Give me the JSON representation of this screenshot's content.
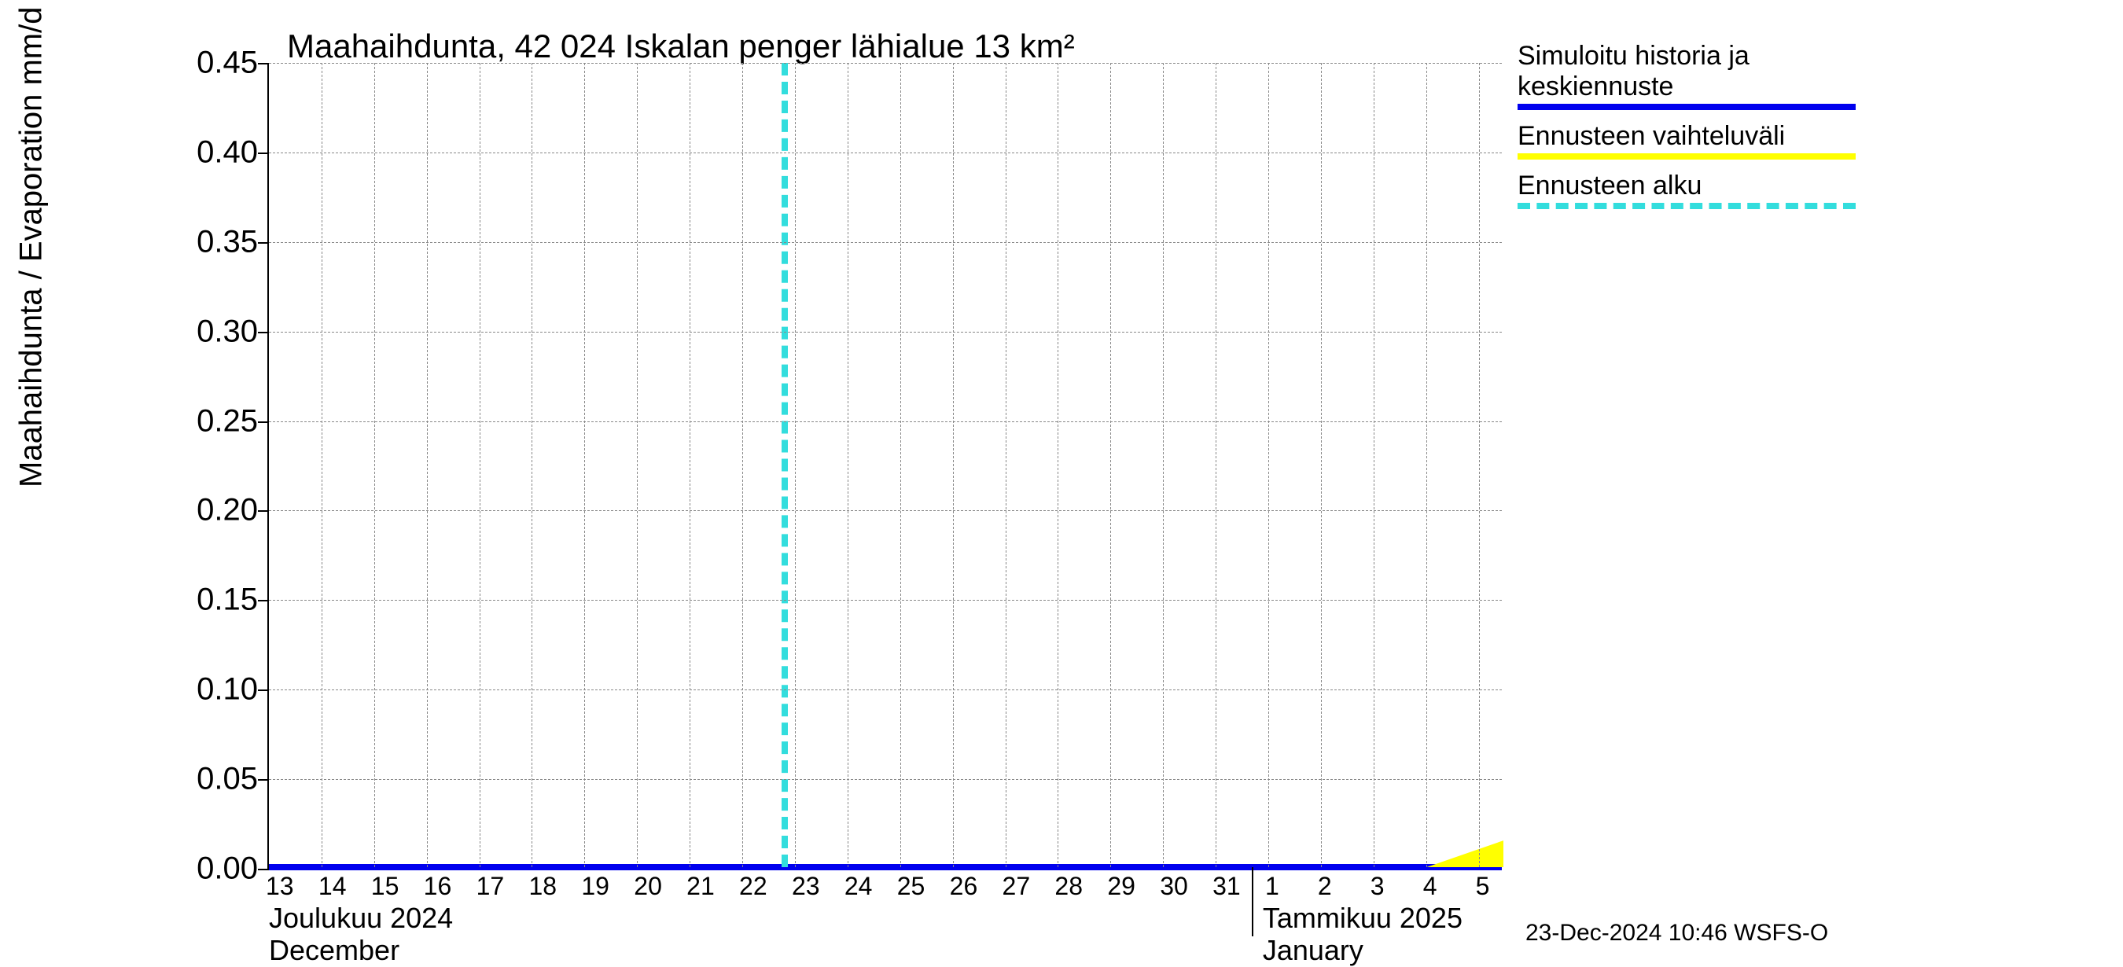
{
  "chart": {
    "type": "line",
    "title": "Maahaihdunta, 42 024 Iskalan penger lähialue 13 km²",
    "y_axis_label": "Maahaihdunta / Evaporation   mm/d",
    "title_fontsize": 42,
    "axis_label_fontsize": 40,
    "tick_fontsize": 40,
    "xtick_fontsize": 32,
    "background_color": "#ffffff",
    "grid_color": "#888888",
    "axis_color": "#000000",
    "ylim": [
      0.0,
      0.45
    ],
    "yticks": [
      0.0,
      0.05,
      0.1,
      0.15,
      0.2,
      0.25,
      0.3,
      0.35,
      0.4,
      0.45
    ],
    "ytick_labels": [
      "0.00",
      "0.05",
      "0.10",
      "0.15",
      "0.20",
      "0.25",
      "0.30",
      "0.35",
      "0.40",
      "0.45"
    ],
    "x_days": [
      "13",
      "14",
      "15",
      "16",
      "17",
      "18",
      "19",
      "20",
      "21",
      "22",
      "23",
      "24",
      "25",
      "26",
      "27",
      "28",
      "29",
      "30",
      "31",
      "1",
      "2",
      "3",
      "4",
      "5"
    ],
    "x_month_labels": [
      {
        "line1": "Joulukuu  2024",
        "line2": "December",
        "pos_pct": 0.0
      },
      {
        "line1": "Tammikuu  2025",
        "line2": "January",
        "pos_pct": 80.5
      }
    ],
    "month_divider_pct": 79.6,
    "series": {
      "simulated_history": {
        "color": "#0000ee",
        "line_width": 8,
        "values_constant": 0.0
      },
      "forecast_range": {
        "color": "#ffff00",
        "start_day_index": 22,
        "end_value_mm": 0.015
      },
      "forecast_start": {
        "color": "#33dddd",
        "day_index_fractional": 9.75,
        "dash": true,
        "line_width": 8
      }
    }
  },
  "legend": {
    "items": [
      {
        "label_line1": "Simuloitu historia ja",
        "label_line2": "keskiennuste",
        "color": "#0000ee",
        "style": "solid"
      },
      {
        "label_line1": "Ennusteen vaihteluväli",
        "label_line2": "",
        "color": "#ffff00",
        "style": "solid"
      },
      {
        "label_line1": "Ennusteen alku",
        "label_line2": "",
        "color": "#33dddd",
        "style": "dashed"
      }
    ]
  },
  "footer": {
    "stamp": "23-Dec-2024 10:46 WSFS-O"
  }
}
